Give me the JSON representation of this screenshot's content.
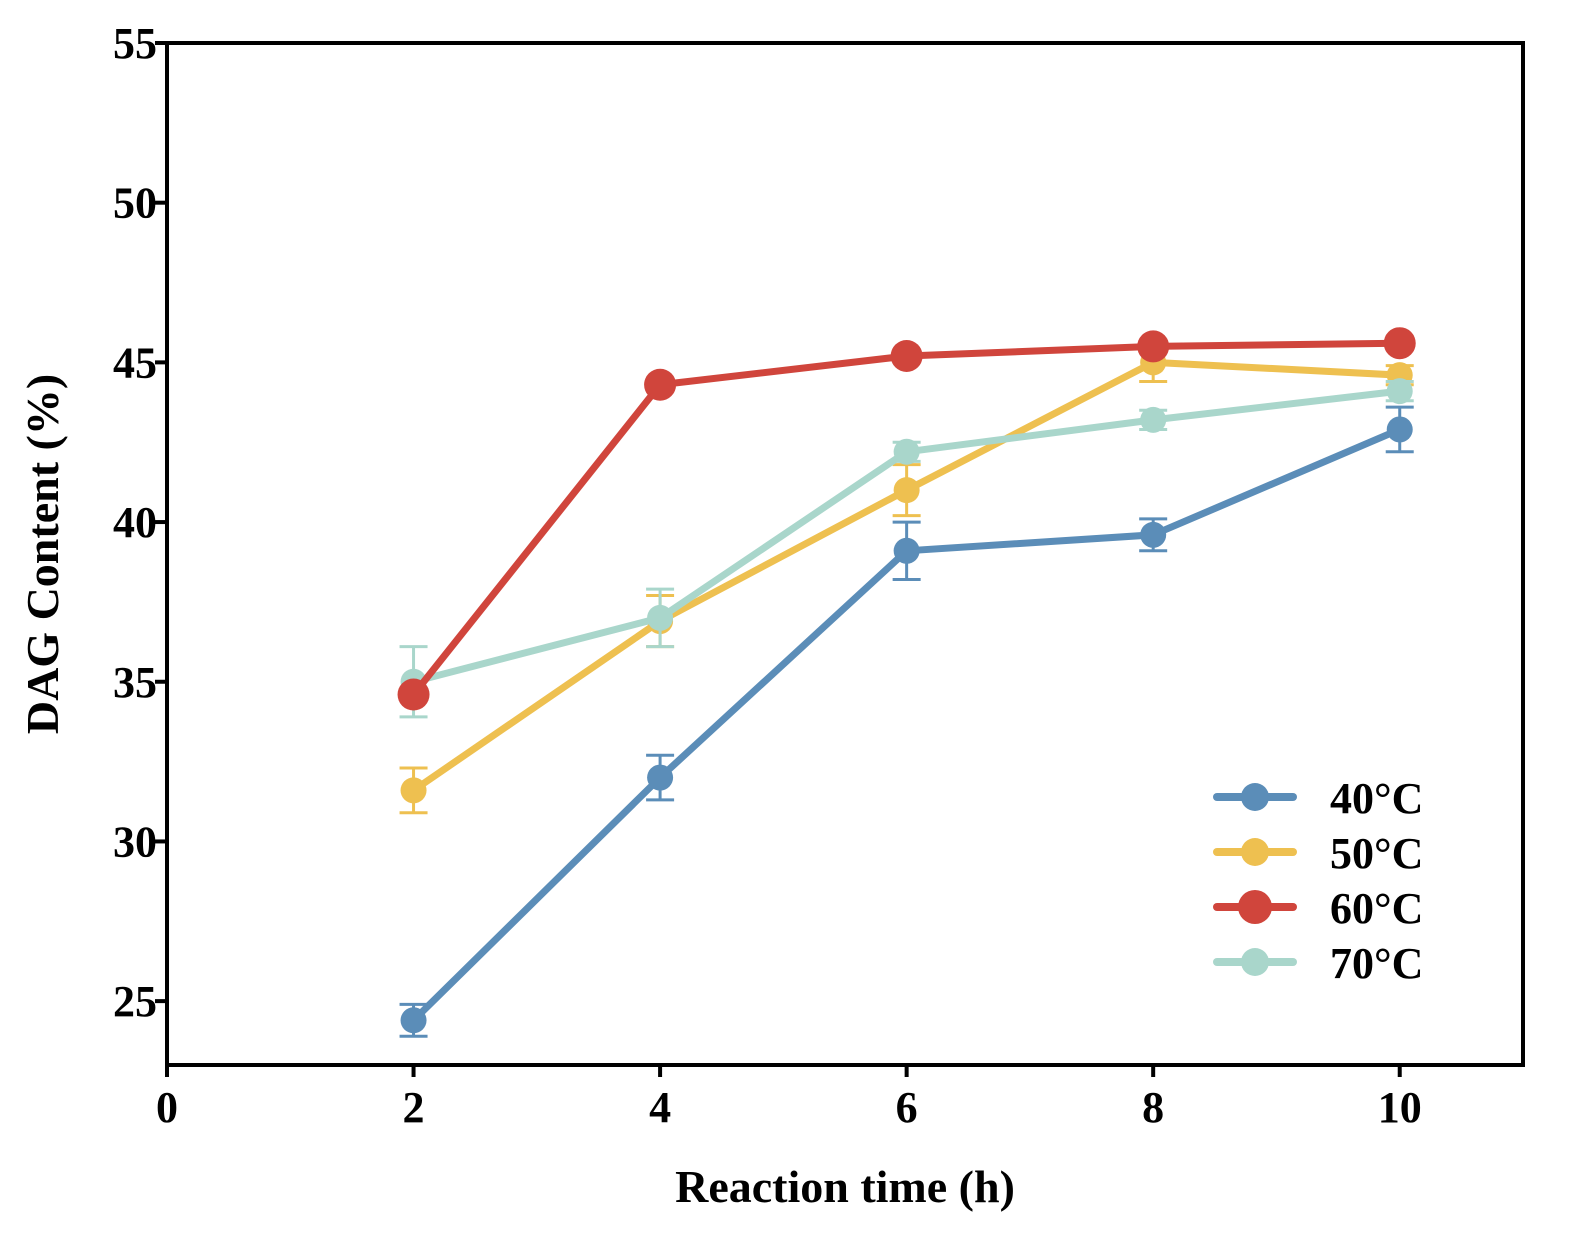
{
  "chart_data": {
    "type": "line",
    "title": "",
    "xlabel": "Reaction time (h)",
    "ylabel": "DAG Content (%)",
    "xlim": [
      0,
      11
    ],
    "ylim": [
      23,
      55
    ],
    "xticks": [
      0,
      2,
      4,
      6,
      8,
      10
    ],
    "yticks": [
      25,
      30,
      35,
      40,
      45,
      50,
      55
    ],
    "x": [
      2,
      4,
      6,
      8,
      10
    ],
    "legend_position": "bottom-right",
    "series": [
      {
        "name": "40°C",
        "color": "#5B8DB8",
        "values": [
          24.4,
          32.0,
          39.1,
          39.6,
          42.9
        ],
        "errors": [
          0.5,
          0.7,
          0.9,
          0.5,
          0.7
        ]
      },
      {
        "name": "50°C",
        "color": "#EEC050",
        "values": [
          31.6,
          36.9,
          41.0,
          45.0,
          44.6
        ],
        "errors": [
          0.7,
          0.8,
          0.8,
          0.6,
          0.3
        ]
      },
      {
        "name": "70°C",
        "color": "#A9D6CB",
        "values": [
          35.0,
          37.0,
          42.2,
          43.2,
          44.1
        ],
        "errors": [
          1.1,
          0.9,
          0.3,
          0.3,
          0.3
        ]
      },
      {
        "name": "60°C",
        "color": "#D0453C",
        "values": [
          34.6,
          44.3,
          45.2,
          45.5,
          45.6
        ],
        "errors": [
          0.2,
          0.2,
          0.2,
          0.2,
          0.2
        ]
      }
    ],
    "legend_order": [
      "40°C",
      "50°C",
      "60°C",
      "70°C"
    ]
  }
}
